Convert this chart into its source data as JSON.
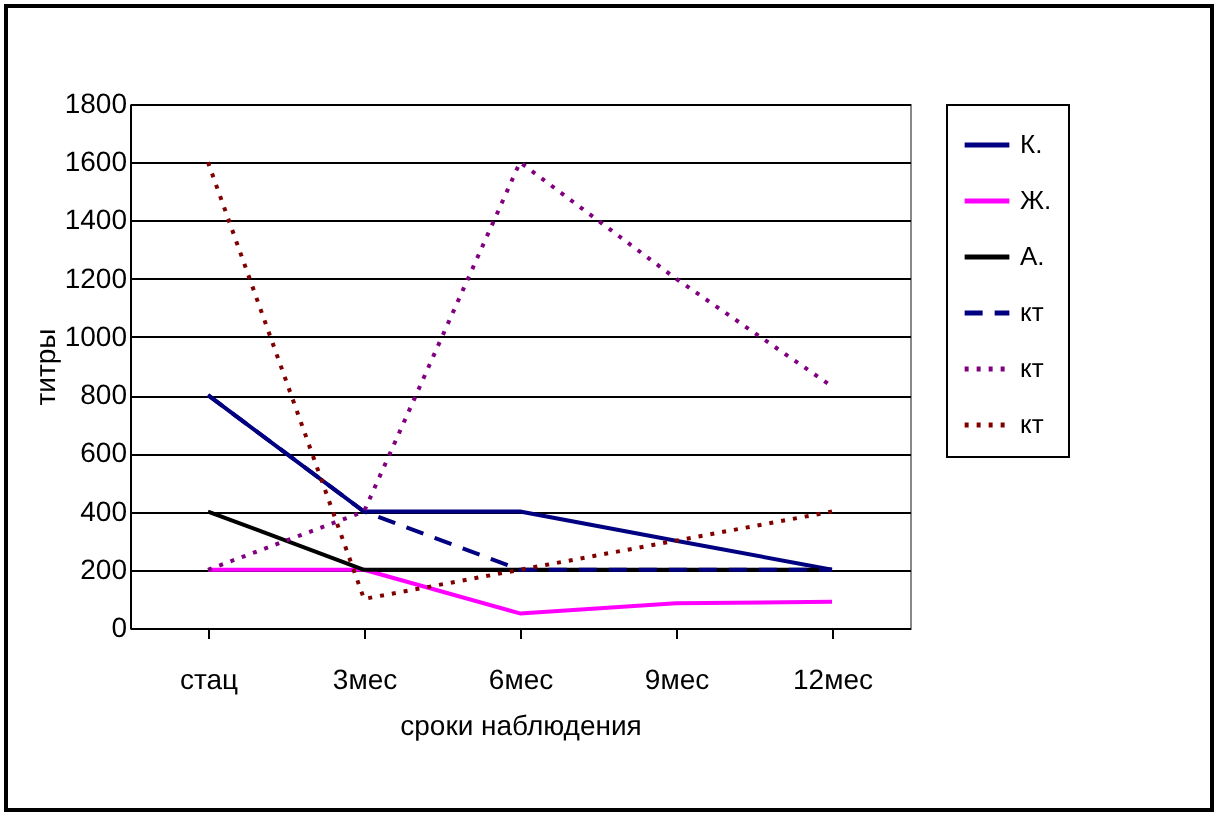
{
  "chart_data": {
    "type": "line",
    "xlabel": "сроки наблюдения",
    "ylabel": "титры",
    "categories": [
      "стац",
      "3мес",
      "6мес",
      "9мес",
      "12мес"
    ],
    "series": [
      {
        "name": "К.",
        "color": "#000080",
        "line_style": "solid",
        "values": [
          800,
          400,
          400,
          300,
          200
        ]
      },
      {
        "name": "Ж.",
        "color": "#ff00ff",
        "line_style": "solid",
        "values": [
          200,
          200,
          50,
          85,
          90
        ]
      },
      {
        "name": "А.",
        "color": "#000000",
        "line_style": "solid",
        "values": [
          400,
          200,
          200,
          200,
          200
        ]
      },
      {
        "name": "кт",
        "color": "#000080",
        "line_style": "dashed",
        "values": [
          800,
          400,
          200,
          200,
          200
        ]
      },
      {
        "name": "кт",
        "color": "#800080",
        "line_style": "dotted",
        "values": [
          200,
          400,
          1600,
          1200,
          830
        ]
      },
      {
        "name": "кт",
        "color": "#800000",
        "line_style": "dotted",
        "values": [
          1600,
          100,
          200,
          300,
          400
        ]
      }
    ],
    "ylim": [
      0,
      1800
    ],
    "yticks": [
      0,
      200,
      400,
      600,
      800,
      1000,
      1200,
      1400,
      1600,
      1800
    ],
    "grid": "y",
    "legend": "right",
    "marker": "none"
  }
}
